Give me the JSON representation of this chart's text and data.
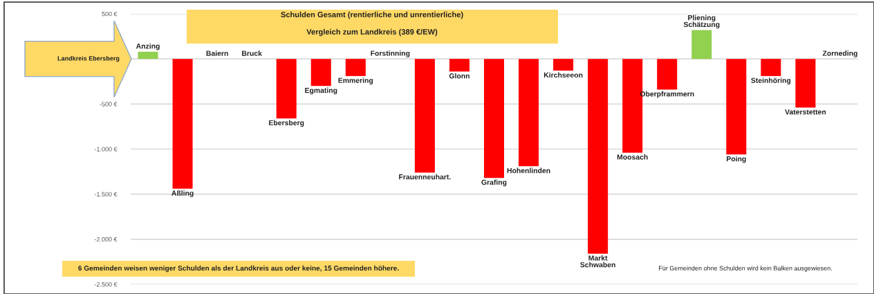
{
  "chart_data": {
    "type": "bar",
    "title": "Schulden Gesamt (rentierliche und unrentierliche)",
    "subtitle": "Vergleich zum Landkreis (389 €/EW)",
    "categories": [
      "Anzing",
      "Aßling",
      "Baiern",
      "Bruck",
      "Ebersberg",
      "Egmating",
      "Emmering",
      "Forstinning",
      "Frauenneuhart.",
      "Glonn",
      "Grafing",
      "Hohenlinden",
      "Kirchseeon",
      "Markt\nSchwaben",
      "Moosach",
      "Oberpframmern",
      "Pliening\nSchätzung",
      "Poing",
      "Steinhöring",
      "Vaterstetten",
      "Zorneding"
    ],
    "values": [
      80,
      -1440,
      null,
      null,
      -660,
      -300,
      -190,
      null,
      -1260,
      -140,
      -1320,
      -1190,
      -130,
      -2160,
      -1040,
      -340,
      320,
      -1060,
      -190,
      -540,
      null
    ],
    "colors": [
      "#92d050",
      "#ff0000",
      null,
      null,
      "#ff0000",
      "#ff0000",
      "#ff0000",
      null,
      "#ff0000",
      "#ff0000",
      "#ff0000",
      "#ff0000",
      "#ff0000",
      "#ff0000",
      "#ff0000",
      "#ff0000",
      "#92d050",
      "#ff0000",
      "#ff0000",
      "#ff0000",
      null
    ],
    "ylim": [
      -2500,
      500
    ],
    "yticks": [
      {
        "value": 500,
        "label": "500 €"
      },
      {
        "value": -500,
        "label": "-500 €"
      },
      {
        "value": -1000,
        "label": "-1.000 €"
      },
      {
        "value": -1500,
        "label": "-1.500 €"
      },
      {
        "value": -2000,
        "label": "-2.000 €"
      },
      {
        "value": -2500,
        "label": "-2.500 €"
      }
    ],
    "ref_lines": [
      {
        "axis": "y",
        "value": 0,
        "label": "Landkreis Ebersberg"
      }
    ],
    "annotations": [
      "6 Gemeinden weisen weniger Schulden als der Landkreis aus oder keine, 15 Gemeinden höhere.",
      "Für Gemeinden ohne Schulden wird kein Balken ausgewiesen."
    ],
    "grid": "y",
    "legend": false
  }
}
